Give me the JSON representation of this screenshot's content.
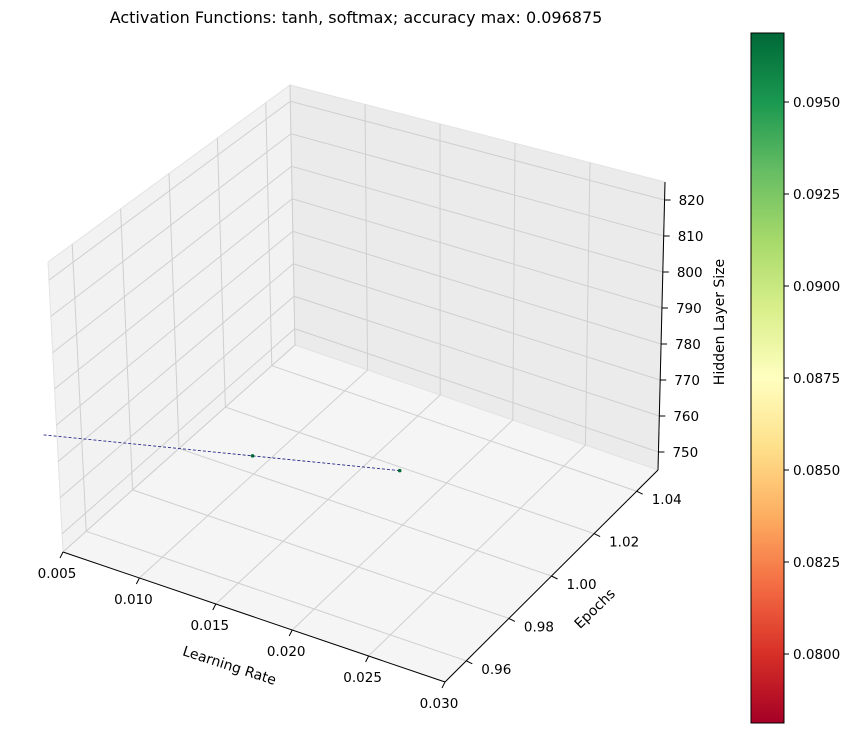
{
  "chart_data": {
    "type": "scatter",
    "projection": "3d",
    "title": "Activation Functions: tanh, softmax; accuracy max: 0.096875",
    "xlabel": "Learning Rate",
    "ylabel": "Epochs",
    "zlabel": "Hidden Layer Size",
    "xlim": [
      0.005,
      0.03
    ],
    "ylim": [
      0.95,
      1.05
    ],
    "zlim": [
      745,
      825
    ],
    "xticks": [
      "0.005",
      "0.010",
      "0.015",
      "0.020",
      "0.025",
      "0.030"
    ],
    "yticks": [
      "0.96",
      "0.98",
      "1.00",
      "1.02",
      "1.04"
    ],
    "zticks": [
      "750",
      "760",
      "770",
      "780",
      "790",
      "800",
      "810",
      "820"
    ],
    "grid": true,
    "colormap": "RdYlGn",
    "colorbar": {
      "min": 0.078125,
      "max": 0.096875,
      "ticks": [
        "0.0800",
        "0.0825",
        "0.0850",
        "0.0875",
        "0.0900",
        "0.0925",
        "0.0950"
      ]
    },
    "points": [
      {
        "learning_rate": 0.01,
        "epochs": 1.0,
        "hidden_layer_size": 750,
        "accuracy": 0.096875
      },
      {
        "learning_rate": 0.02,
        "epochs": 1.0,
        "hidden_layer_size": 760,
        "accuracy": 0.096875
      }
    ],
    "trend_line": {
      "style": "dashed",
      "color": "#2a2a8a"
    }
  }
}
